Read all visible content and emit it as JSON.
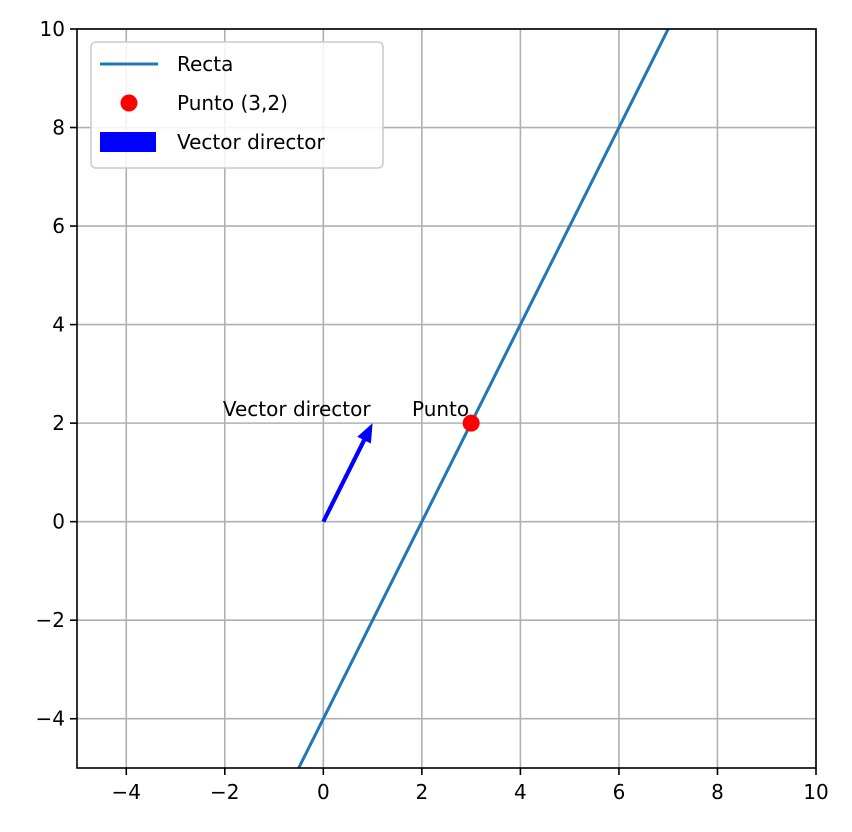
{
  "chart_data": {
    "type": "line",
    "title": "",
    "xlabel": "",
    "ylabel": "",
    "xlim": [
      -5,
      10
    ],
    "ylim": [
      -5,
      10
    ],
    "xticks": [
      -4,
      -2,
      0,
      2,
      4,
      6,
      8,
      10
    ],
    "yticks": [
      -4,
      -2,
      0,
      2,
      4,
      6,
      8,
      10
    ],
    "xtick_labels": [
      "−4",
      "−2",
      "0",
      "2",
      "4",
      "6",
      "8",
      "10"
    ],
    "ytick_labels": [
      "−4",
      "−2",
      "0",
      "2",
      "4",
      "6",
      "8",
      "10"
    ],
    "grid": true,
    "legend_position": "top-left",
    "series": [
      {
        "name": "Recta",
        "kind": "line",
        "color": "#1f77b4",
        "x": [
          -0.5,
          7.0
        ],
        "y": [
          -5.0,
          10.0
        ]
      },
      {
        "name": "Punto (3,2)",
        "kind": "point",
        "color": "#ff0000",
        "x": [
          3
        ],
        "y": [
          2
        ]
      },
      {
        "name": "Vector director",
        "kind": "arrow",
        "color": "#0000ff",
        "origin": [
          0,
          0
        ],
        "vector": [
          1,
          2
        ]
      }
    ],
    "annotations": [
      {
        "text": "Vector director",
        "x": 1,
        "y": 2,
        "anchor": "end"
      },
      {
        "text": "Punto",
        "x": 3,
        "y": 2,
        "anchor": "end"
      }
    ]
  }
}
